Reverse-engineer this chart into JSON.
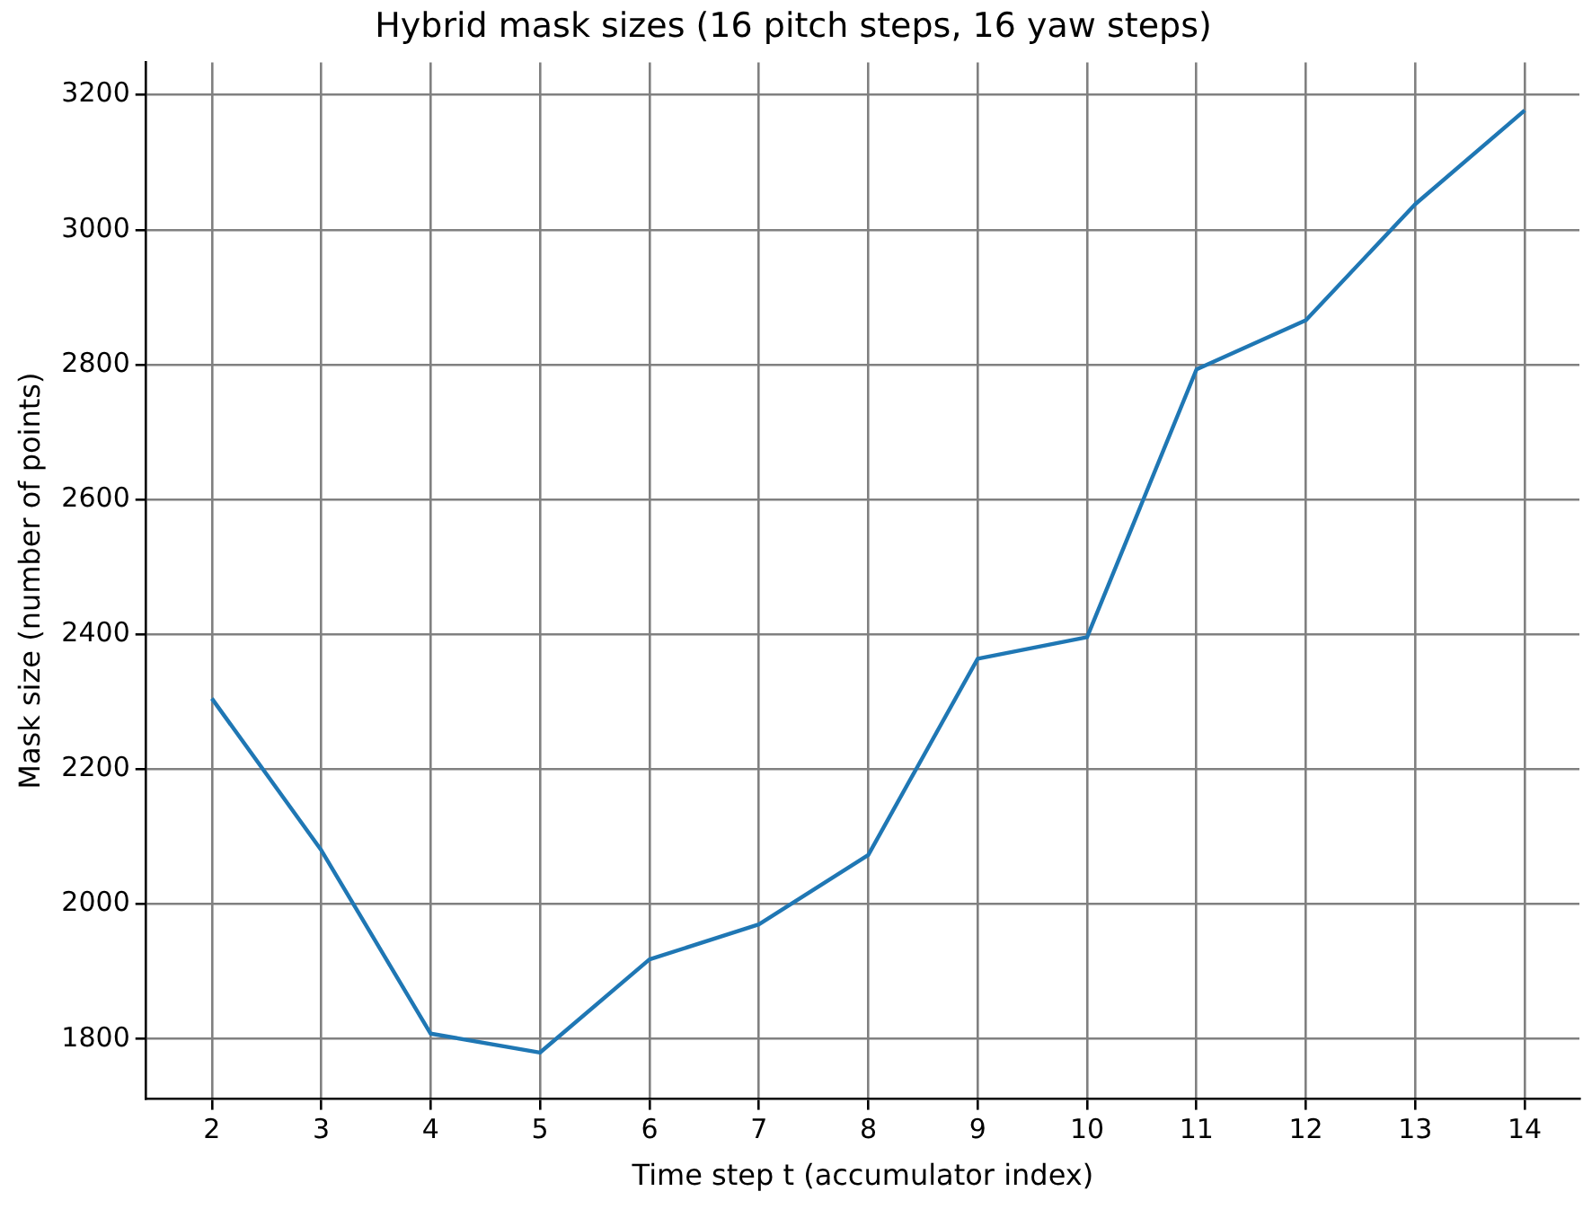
{
  "chart_data": {
    "type": "line",
    "title": "Hybrid mask sizes (16 pitch steps, 16 yaw steps)",
    "xlabel": "Time step t (accumulator index)",
    "ylabel": "Mask size (number of points)",
    "x": [
      2,
      3,
      4,
      5,
      6,
      7,
      8,
      9,
      10,
      11,
      12,
      13,
      14
    ],
    "series": [
      {
        "color": "#1f77b4",
        "values": [
          2305,
          2080,
          1808,
          1780,
          1918,
          1970,
          2073,
          2364,
          2396,
          2793,
          2866,
          3038,
          3177
        ]
      }
    ],
    "xlim": [
      1.4,
      14.5
    ],
    "xticks": [
      2,
      3,
      4,
      5,
      6,
      7,
      8,
      9,
      10,
      11,
      12,
      13,
      14
    ],
    "ylim": [
      1711,
      3248
    ],
    "yticks": [
      1800,
      2000,
      2200,
      2400,
      2600,
      2800,
      3000,
      3200
    ],
    "grid": true,
    "legend": false
  }
}
